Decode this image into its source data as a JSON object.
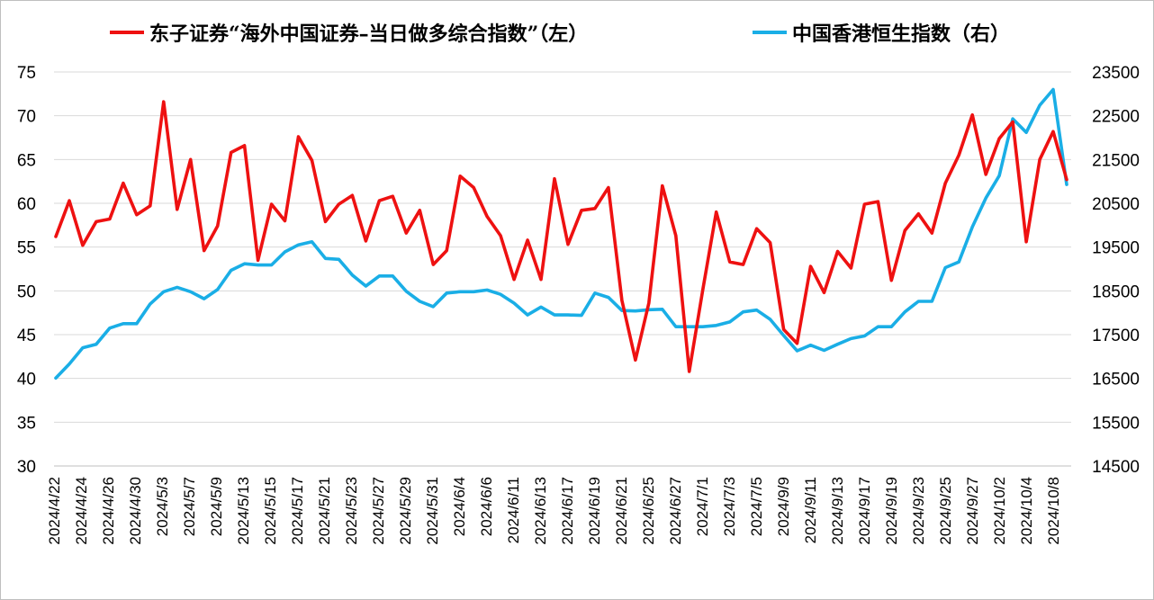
{
  "legend": {
    "left_label": "东子证券“海外中国证券–当日做多综合指数”（左）",
    "right_label": "中国香港恒生指数（右）"
  },
  "colors": {
    "left_series": "#ee1111",
    "right_series": "#1aaee6",
    "grid": "#d9d9d9"
  },
  "chart_data": {
    "type": "line",
    "title": "",
    "y_left": {
      "min": 30,
      "max": 75,
      "step": 5,
      "ticks": [
        "30",
        "35",
        "40",
        "45",
        "50",
        "55",
        "60",
        "65",
        "70",
        "75"
      ]
    },
    "y_right": {
      "min": 14500,
      "max": 23500,
      "step": 1000,
      "ticks": [
        "14500",
        "15500",
        "16500",
        "17500",
        "18500",
        "19500",
        "20500",
        "21500",
        "22500",
        "23500"
      ]
    },
    "x_tick_labels": [
      "2024/4/22",
      "2024/4/24",
      "2024/4/26",
      "2024/4/30",
      "2024/5/3",
      "2024/5/7",
      "2024/5/9",
      "2024/5/13",
      "2024/5/15",
      "2024/5/17",
      "2024/5/21",
      "2024/5/23",
      "2024/5/27",
      "2024/5/29",
      "2024/5/31",
      "2024/6/4",
      "2024/6/6",
      "2024/6/11",
      "2024/6/13",
      "2024/6/17",
      "2024/6/19",
      "2024/6/21",
      "2024/6/25",
      "2024/6/27",
      "2024/7/1",
      "2024/7/3",
      "2024/7/5",
      "2024/9/9",
      "2024/9/11",
      "2024/9/13",
      "2024/9/17",
      "2024/9/19",
      "2024/9/23",
      "2024/9/25",
      "2024/9/27",
      "2024/10/2",
      "2024/10/4",
      "2024/10/8"
    ],
    "series": [
      {
        "name": "东子证券“海外中国证券–当日做多综合指数”（左）",
        "axis": "left",
        "values": [
          56.2,
          60.3,
          55.2,
          57.9,
          58.2,
          62.3,
          58.7,
          59.7,
          71.6,
          59.3,
          65.0,
          54.6,
          57.4,
          65.8,
          66.6,
          53.5,
          59.9,
          58.0,
          67.6,
          64.9,
          57.9,
          59.9,
          60.9,
          55.7,
          60.3,
          60.8,
          56.6,
          59.2,
          53.0,
          54.6,
          63.1,
          61.8,
          58.5,
          56.3,
          51.3,
          55.8,
          51.3,
          62.8,
          55.3,
          59.2,
          59.4,
          61.8,
          48.9,
          42.1,
          48.6,
          62.0,
          56.3,
          40.8,
          50.1,
          59.0,
          53.3,
          53.0,
          57.1,
          55.5,
          45.6,
          44.0,
          52.8,
          49.8,
          54.5,
          52.6,
          59.9,
          60.2,
          51.2,
          56.9,
          58.8,
          56.6,
          62.3,
          65.5,
          70.1,
          63.3,
          67.4,
          69.3,
          55.6,
          65.0,
          68.2,
          62.7
        ]
      },
      {
        "name": "中国香港恒生指数（右）",
        "axis": "right",
        "values": [
          16510,
          16830,
          17200,
          17280,
          17650,
          17750,
          17750,
          18200,
          18480,
          18580,
          18480,
          18320,
          18530,
          18970,
          19120,
          19090,
          19090,
          19390,
          19550,
          19620,
          19240,
          19220,
          18860,
          18610,
          18840,
          18840,
          18490,
          18260,
          18140,
          18450,
          18480,
          18480,
          18520,
          18420,
          18220,
          17950,
          18130,
          17950,
          17950,
          17940,
          18450,
          18350,
          18050,
          18040,
          18070,
          18080,
          17680,
          17680,
          17680,
          17710,
          17790,
          18020,
          18060,
          17850,
          17480,
          17130,
          17260,
          17140,
          17280,
          17410,
          17470,
          17680,
          17680,
          18020,
          18260,
          18260,
          19030,
          19160,
          19960,
          20620,
          21130,
          22430,
          22120,
          22740,
          23100,
          20930
        ]
      }
    ],
    "legend_position": "top",
    "grid": true
  }
}
